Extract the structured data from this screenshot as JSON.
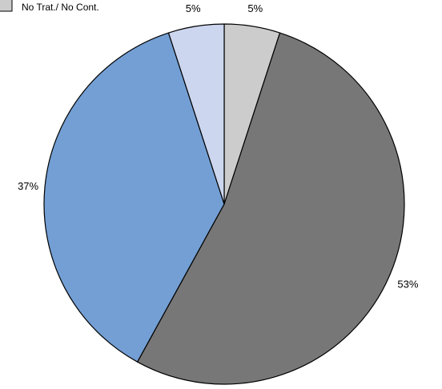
{
  "chart_data": {
    "type": "pie",
    "legend": {
      "placement": "top-left",
      "entries": [
        {
          "label": "No Trat./ No Cont.",
          "color": "#cccccc"
        }
      ]
    },
    "slices": [
      {
        "value": 5,
        "label": "5%",
        "color": "#cccccc"
      },
      {
        "value": 53,
        "label": "53%",
        "color": "#777777"
      },
      {
        "value": 37,
        "label": "37%",
        "color": "#739fd4"
      },
      {
        "value": 5,
        "label": "5%",
        "color": "#ccd6ef"
      }
    ],
    "start_angle": "top",
    "direction": "clockwise",
    "stroke_color": "#000000"
  }
}
